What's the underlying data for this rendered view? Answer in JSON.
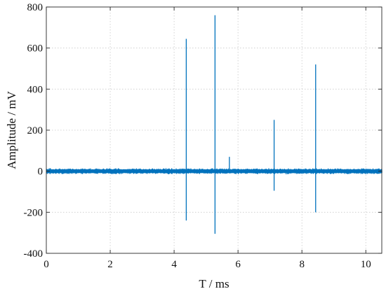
{
  "chart_data": {
    "type": "line",
    "title": "",
    "xlabel": "T / ms",
    "ylabel": "Amplitude / mV",
    "xlim": [
      0,
      10.5
    ],
    "ylim": [
      -400,
      800
    ],
    "x_ticks": [
      0,
      2,
      4,
      6,
      8,
      10
    ],
    "y_ticks": [
      -400,
      -200,
      0,
      200,
      400,
      600,
      800
    ],
    "grid": true,
    "grid_style": "dotted",
    "legend": "none",
    "line_color": "#0072BD",
    "noise_band": {
      "amplitude": 15
    },
    "pulses": [
      {
        "x": 4.38,
        "max": 645,
        "min": -240
      },
      {
        "x": 5.28,
        "max": 760,
        "min": -305
      },
      {
        "x": 5.73,
        "max": 70,
        "min": -10
      },
      {
        "x": 7.13,
        "max": 250,
        "min": -95
      },
      {
        "x": 8.43,
        "max": 520,
        "min": -200
      }
    ]
  }
}
